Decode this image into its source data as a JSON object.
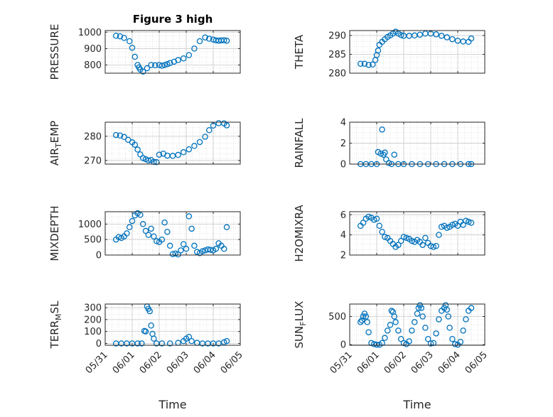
{
  "chart_data": [
    {
      "type": "scatter",
      "title": "Figure 3 high",
      "ylabel": "PRESSURE",
      "ylim": [
        750,
        1010
      ],
      "yticks": [
        "1000",
        "900",
        "800"
      ],
      "ytick_values": [
        1000,
        900,
        800
      ],
      "series": [
        {
          "x": [
            0.4,
            0.55,
            0.7,
            0.9,
            1.0,
            1.1,
            1.2,
            1.25,
            1.3,
            1.4,
            1.55,
            1.7,
            1.85,
            2.0,
            2.1,
            2.2,
            2.3,
            2.4,
            2.55,
            2.7,
            2.9,
            3.1,
            3.3,
            3.5,
            3.7,
            3.85,
            4.0,
            4.1,
            4.2,
            4.3,
            4.4,
            4.5
          ],
          "y": [
            978,
            975,
            965,
            945,
            905,
            850,
            800,
            785,
            772,
            760,
            780,
            800,
            798,
            800,
            795,
            800,
            805,
            812,
            820,
            830,
            840,
            860,
            900,
            945,
            968,
            960,
            955,
            950,
            948,
            950,
            951,
            948
          ]
        }
      ]
    },
    {
      "type": "scatter",
      "ylabel": "THETA",
      "ylim": [
        280,
        291.3
      ],
      "yticks": [
        "290",
        "285",
        "280"
      ],
      "ytick_values": [
        290,
        285,
        280
      ],
      "series": [
        {
          "x": [
            0.4,
            0.55,
            0.7,
            0.85,
            0.95,
            1.0,
            1.05,
            1.1,
            1.2,
            1.3,
            1.4,
            1.5,
            1.6,
            1.7,
            1.8,
            1.9,
            2.0,
            2.2,
            2.4,
            2.6,
            2.8,
            3.0,
            3.2,
            3.4,
            3.6,
            3.8,
            4.0,
            4.2,
            4.4,
            4.5
          ],
          "y": [
            282.5,
            282.5,
            282.2,
            282.3,
            283.5,
            284.8,
            286,
            287.5,
            288.3,
            289,
            289.6,
            290,
            290.5,
            291,
            290.5,
            290.1,
            289.9,
            289.9,
            290,
            290.2,
            290.5,
            290.5,
            290.3,
            289.9,
            289.5,
            289,
            288.6,
            288.4,
            288.3,
            289.2
          ]
        }
      ]
    },
    {
      "type": "scatter",
      "ylabel": "AIR_TEMP",
      "ylim": [
        268.5,
        285.8
      ],
      "yticks": [
        "280",
        "270"
      ],
      "ytick_values": [
        280,
        270
      ],
      "series": [
        {
          "x": [
            0.4,
            0.55,
            0.7,
            0.85,
            1.0,
            1.1,
            1.2,
            1.3,
            1.4,
            1.5,
            1.6,
            1.7,
            1.8,
            1.9,
            2.0,
            2.15,
            2.3,
            2.5,
            2.7,
            2.9,
            3.1,
            3.3,
            3.5,
            3.7,
            3.85,
            4.0,
            4.2,
            4.4,
            4.5
          ],
          "y": [
            280.5,
            280.3,
            279.7,
            278.5,
            277.5,
            276.5,
            274.5,
            272.5,
            271,
            270.5,
            270,
            270.2,
            269.4,
            269.3,
            272.4,
            272.8,
            272,
            271.9,
            272.3,
            273.4,
            274.6,
            276,
            277.6,
            279.8,
            282.5,
            284.4,
            285.4,
            285.3,
            284.5
          ]
        }
      ]
    },
    {
      "type": "scatter",
      "ylabel": "RAINFALL",
      "ylim": [
        0,
        4
      ],
      "yticks": [
        "4",
        "2",
        "0"
      ],
      "ytick_values": [
        4,
        2,
        0
      ],
      "series": [
        {
          "x": [
            0.4,
            0.6,
            0.8,
            1.0,
            1.05,
            1.15,
            1.2,
            1.25,
            1.3,
            1.35,
            1.45,
            1.55,
            1.65,
            1.8,
            2.0,
            2.3,
            2.6,
            2.9,
            3.2,
            3.5,
            3.8,
            4.1,
            4.4,
            4.5
          ],
          "y": [
            0,
            0,
            0,
            0,
            1.15,
            1.0,
            3.3,
            0.9,
            1.1,
            0.45,
            0.1,
            0,
            0.9,
            0,
            0,
            0,
            0,
            0,
            0,
            0,
            0,
            0,
            0,
            0
          ]
        }
      ]
    },
    {
      "type": "scatter",
      "ylabel": "MIXDEPTH",
      "ylim": [
        0,
        1400
      ],
      "yticks": [
        "1000",
        "500",
        "0"
      ],
      "ytick_values": [
        1000,
        500,
        0
      ],
      "series": [
        {
          "x": [
            0.4,
            0.5,
            0.6,
            0.7,
            0.8,
            0.9,
            1.0,
            1.1,
            1.2,
            1.3,
            1.4,
            1.5,
            1.6,
            1.7,
            1.8,
            1.9,
            2.0,
            2.1,
            2.2,
            2.3,
            2.4,
            2.5,
            2.6,
            2.7,
            2.8,
            2.9,
            3.0,
            3.1,
            3.2,
            3.3,
            3.4,
            3.5,
            3.6,
            3.7,
            3.8,
            3.9,
            4.0,
            4.1,
            4.2,
            4.3,
            4.4,
            4.5
          ],
          "y": [
            500,
            580,
            550,
            600,
            700,
            900,
            1100,
            1280,
            1350,
            1300,
            1000,
            780,
            650,
            850,
            600,
            450,
            420,
            500,
            1050,
            750,
            300,
            30,
            50,
            20,
            150,
            350,
            200,
            1250,
            850,
            300,
            100,
            60,
            120,
            150,
            180,
            170,
            150,
            200,
            380,
            300,
            200,
            900
          ]
        }
      ]
    },
    {
      "type": "scatter",
      "ylabel": "H2OMIXRA",
      "ylim": [
        2,
        6.3
      ],
      "yticks": [
        "6",
        "4",
        "2"
      ],
      "ytick_values": [
        6,
        4,
        2
      ],
      "series": [
        {
          "x": [
            0.4,
            0.5,
            0.6,
            0.7,
            0.8,
            0.9,
            1.0,
            1.1,
            1.2,
            1.3,
            1.4,
            1.5,
            1.6,
            1.7,
            1.8,
            1.9,
            2.0,
            2.1,
            2.2,
            2.3,
            2.4,
            2.5,
            2.6,
            2.7,
            2.8,
            2.9,
            3.0,
            3.1,
            3.2,
            3.3,
            3.4,
            3.5,
            3.6,
            3.7,
            3.8,
            3.9,
            4.0,
            4.1,
            4.2,
            4.3,
            4.4,
            4.5
          ],
          "y": [
            4.9,
            5.2,
            5.6,
            5.8,
            5.7,
            5.5,
            5.6,
            4.9,
            4.3,
            3.8,
            3.7,
            3.4,
            3.1,
            2.8,
            3.0,
            3.4,
            3.8,
            3.7,
            3.6,
            3.4,
            3.3,
            3.5,
            3.3,
            3.0,
            3.7,
            3.2,
            2.9,
            2.8,
            2.9,
            4.0,
            4.8,
            4.9,
            4.7,
            4.8,
            5.0,
            5.1,
            4.9,
            5.3,
            5.0,
            5.4,
            5.3,
            5.2
          ]
        }
      ]
    },
    {
      "type": "scatter",
      "ylabel": "TERR_MSL",
      "ylim": [
        -15,
        330
      ],
      "yticks": [
        "300",
        "200",
        "100",
        "0"
      ],
      "ytick_values": [
        300,
        200,
        100,
        0
      ],
      "series": [
        {
          "x": [
            0.4,
            0.6,
            0.8,
            1.0,
            1.2,
            1.35,
            1.45,
            1.5,
            1.55,
            1.6,
            1.65,
            1.7,
            1.75,
            1.8,
            1.9,
            2.1,
            2.4,
            2.7,
            2.9,
            3.0,
            3.1,
            3.2,
            3.4,
            3.6,
            3.8,
            4.0,
            4.2,
            4.4,
            4.5
          ],
          "y": [
            0,
            0,
            0,
            0,
            0,
            0,
            105,
            100,
            310,
            290,
            270,
            150,
            80,
            40,
            0,
            0,
            0,
            5,
            20,
            40,
            55,
            20,
            5,
            0,
            0,
            0,
            0,
            10,
            20
          ]
        }
      ]
    },
    {
      "type": "scatter",
      "ylabel": "SUN_FLUX",
      "ylim": [
        -10,
        720
      ],
      "yticks": [
        "500",
        "0"
      ],
      "ytick_values": [
        500,
        0
      ],
      "series": [
        {
          "x": [
            0.4,
            0.45,
            0.5,
            0.55,
            0.6,
            0.65,
            0.7,
            0.8,
            0.9,
            1.0,
            1.1,
            1.2,
            1.3,
            1.4,
            1.5,
            1.55,
            1.6,
            1.65,
            1.7,
            1.8,
            1.9,
            2.0,
            2.1,
            2.2,
            2.3,
            2.4,
            2.5,
            2.55,
            2.6,
            2.65,
            2.7,
            2.8,
            2.9,
            3.0,
            3.1,
            3.2,
            3.3,
            3.4,
            3.5,
            3.55,
            3.6,
            3.65,
            3.7,
            3.8,
            3.9,
            4.0,
            4.1,
            4.2,
            4.3,
            4.4,
            4.5
          ],
          "y": [
            400,
            430,
            500,
            550,
            500,
            400,
            220,
            30,
            10,
            0,
            0,
            30,
            120,
            250,
            350,
            600,
            580,
            500,
            400,
            250,
            100,
            30,
            10,
            60,
            250,
            400,
            550,
            650,
            700,
            650,
            500,
            300,
            100,
            20,
            30,
            200,
            450,
            600,
            650,
            700,
            620,
            500,
            300,
            100,
            10,
            0,
            50,
            250,
            450,
            600,
            650
          ]
        }
      ]
    }
  ],
  "x_axis": {
    "xlabel": "Time",
    "xlim": [
      0,
      5
    ],
    "ticks": [
      "05/31",
      "06/01",
      "06/02",
      "06/03",
      "06/04",
      "06/05"
    ],
    "tick_values": [
      0,
      1,
      2,
      3,
      4,
      5
    ]
  },
  "marker_color": "#0072BD",
  "axis_color": "#262626",
  "grid_color": "#dcdcdc"
}
